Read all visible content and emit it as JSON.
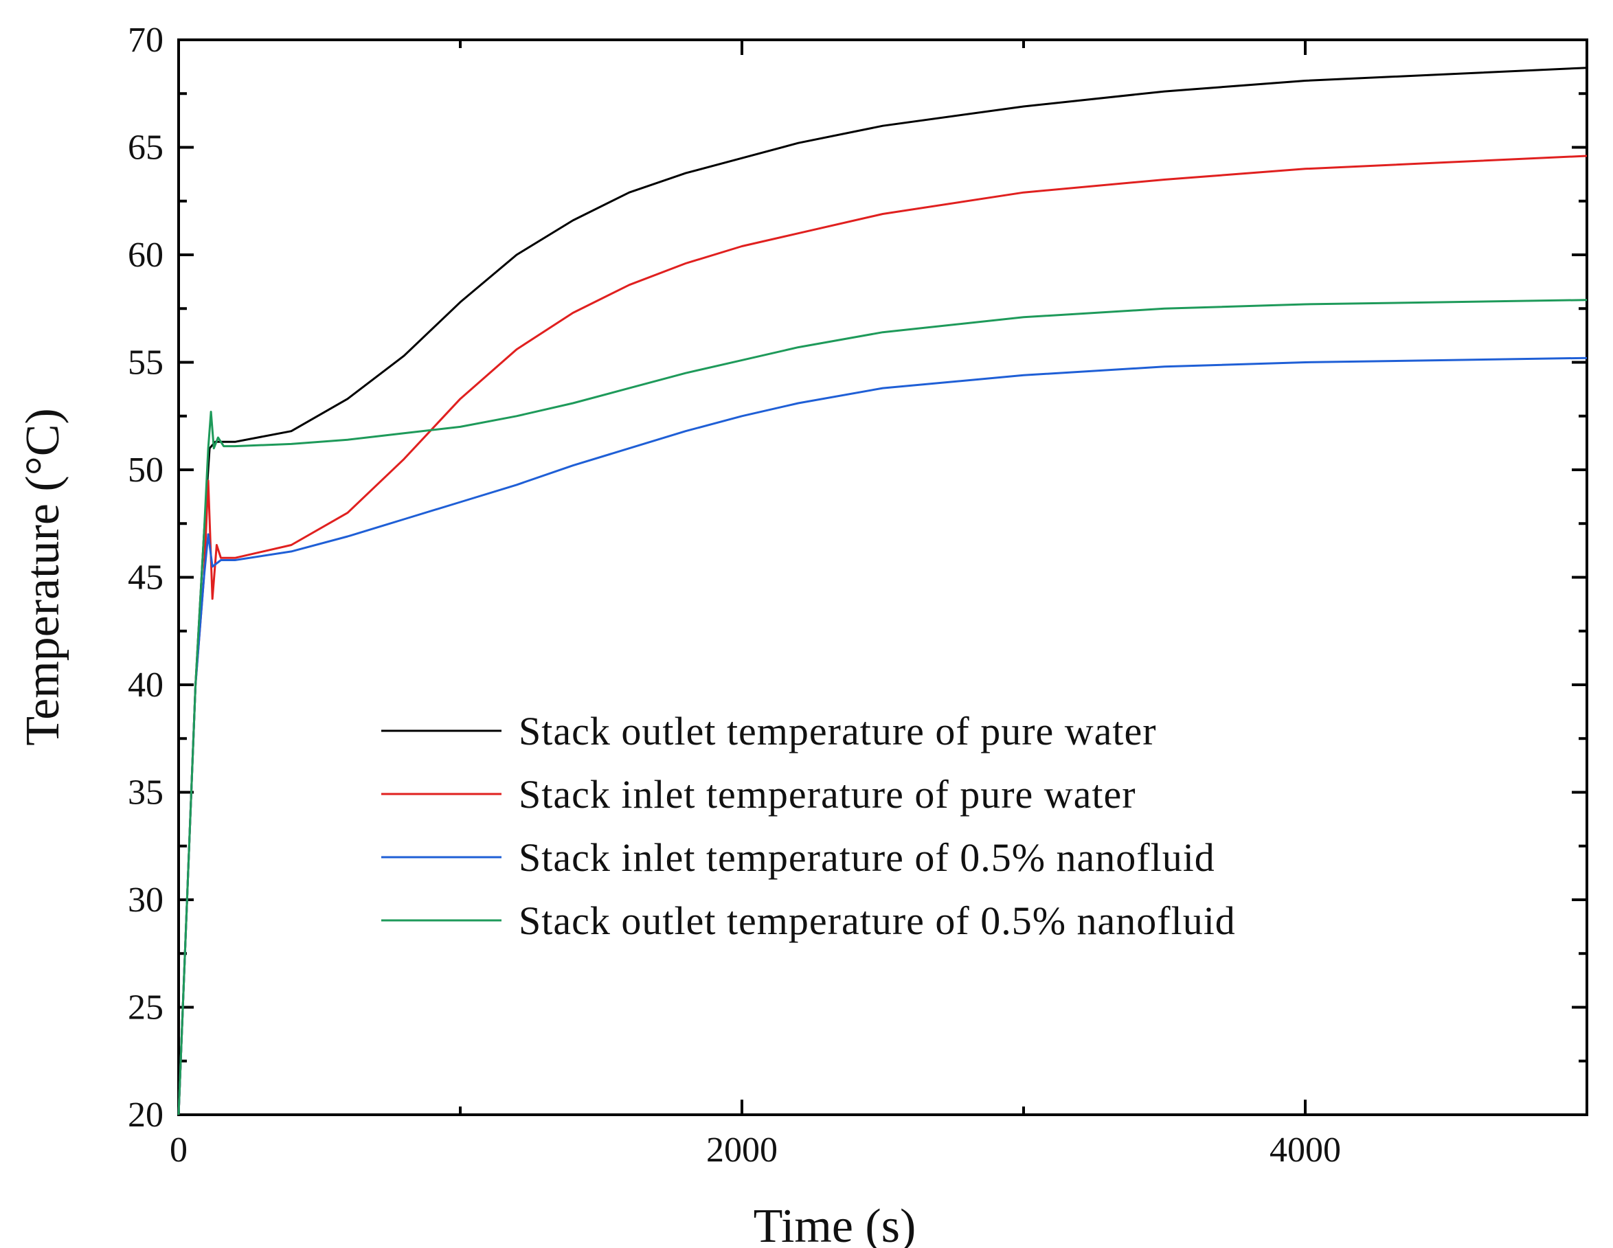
{
  "chart_data": {
    "type": "line",
    "title": "",
    "xlabel": "Time (s)",
    "ylabel": "Temperature (°C)",
    "xlim": [
      0,
      5000
    ],
    "ylim": [
      20,
      70
    ],
    "xticks": [
      0,
      2000,
      4000
    ],
    "xtick_labels": [
      "0",
      "2000",
      "4000"
    ],
    "yticks": [
      20,
      25,
      30,
      35,
      40,
      45,
      50,
      55,
      60,
      65,
      70
    ],
    "ytick_labels": [
      "20",
      "25",
      "30",
      "35",
      "40",
      "45",
      "50",
      "55",
      "60",
      "65",
      "70"
    ],
    "grid": false,
    "legend_position": "center-right",
    "series": [
      {
        "name": "Stack outlet temperature of pure water",
        "color": "#000000",
        "points": [
          [
            0,
            20
          ],
          [
            30,
            30
          ],
          [
            60,
            40
          ],
          [
            90,
            47
          ],
          [
            110,
            51
          ],
          [
            130,
            51.3
          ],
          [
            200,
            51.3
          ],
          [
            400,
            51.8
          ],
          [
            600,
            53.3
          ],
          [
            800,
            55.3
          ],
          [
            1000,
            57.8
          ],
          [
            1200,
            60.0
          ],
          [
            1400,
            61.6
          ],
          [
            1600,
            62.9
          ],
          [
            1800,
            63.8
          ],
          [
            2000,
            64.5
          ],
          [
            2200,
            65.2
          ],
          [
            2500,
            66.0
          ],
          [
            3000,
            66.9
          ],
          [
            3500,
            67.6
          ],
          [
            4000,
            68.1
          ],
          [
            4500,
            68.4
          ],
          [
            5000,
            68.7
          ]
        ]
      },
      {
        "name": "Stack inlet temperature of pure water",
        "color": "#e0201f",
        "points": [
          [
            0,
            20
          ],
          [
            30,
            30
          ],
          [
            60,
            40
          ],
          [
            90,
            45
          ],
          [
            105,
            49.5
          ],
          [
            120,
            44
          ],
          [
            135,
            46.5
          ],
          [
            150,
            45.9
          ],
          [
            200,
            45.9
          ],
          [
            400,
            46.5
          ],
          [
            600,
            48
          ],
          [
            800,
            50.5
          ],
          [
            1000,
            53.3
          ],
          [
            1200,
            55.6
          ],
          [
            1400,
            57.3
          ],
          [
            1600,
            58.6
          ],
          [
            1800,
            59.6
          ],
          [
            2000,
            60.4
          ],
          [
            2200,
            61.0
          ],
          [
            2500,
            61.9
          ],
          [
            3000,
            62.9
          ],
          [
            3500,
            63.5
          ],
          [
            4000,
            64.0
          ],
          [
            4500,
            64.3
          ],
          [
            5000,
            64.6
          ]
        ]
      },
      {
        "name": "Stack inlet temperature of  0.5% nanofluid",
        "color": "#1f5fd6",
        "points": [
          [
            0,
            20
          ],
          [
            30,
            30
          ],
          [
            60,
            40
          ],
          [
            90,
            45
          ],
          [
            105,
            47
          ],
          [
            120,
            45.5
          ],
          [
            150,
            45.8
          ],
          [
            200,
            45.8
          ],
          [
            400,
            46.2
          ],
          [
            600,
            46.9
          ],
          [
            800,
            47.7
          ],
          [
            1000,
            48.5
          ],
          [
            1200,
            49.3
          ],
          [
            1400,
            50.2
          ],
          [
            1600,
            51.0
          ],
          [
            1800,
            51.8
          ],
          [
            2000,
            52.5
          ],
          [
            2200,
            53.1
          ],
          [
            2500,
            53.8
          ],
          [
            3000,
            54.4
          ],
          [
            3500,
            54.8
          ],
          [
            4000,
            55.0
          ],
          [
            4500,
            55.1
          ],
          [
            5000,
            55.2
          ]
        ]
      },
      {
        "name": "Stack outlet temperature of  0.5% nanofluid",
        "color": "#1e9a5a",
        "points": [
          [
            0,
            20
          ],
          [
            30,
            30
          ],
          [
            60,
            40
          ],
          [
            90,
            47
          ],
          [
            105,
            51
          ],
          [
            115,
            52.7
          ],
          [
            125,
            51
          ],
          [
            140,
            51.5
          ],
          [
            160,
            51.1
          ],
          [
            200,
            51.1
          ],
          [
            400,
            51.2
          ],
          [
            600,
            51.4
          ],
          [
            800,
            51.7
          ],
          [
            1000,
            52.0
          ],
          [
            1200,
            52.5
          ],
          [
            1400,
            53.1
          ],
          [
            1600,
            53.8
          ],
          [
            1800,
            54.5
          ],
          [
            2000,
            55.1
          ],
          [
            2200,
            55.7
          ],
          [
            2500,
            56.4
          ],
          [
            3000,
            57.1
          ],
          [
            3500,
            57.5
          ],
          [
            4000,
            57.7
          ],
          [
            4500,
            57.8
          ],
          [
            5000,
            57.9
          ]
        ]
      }
    ]
  }
}
